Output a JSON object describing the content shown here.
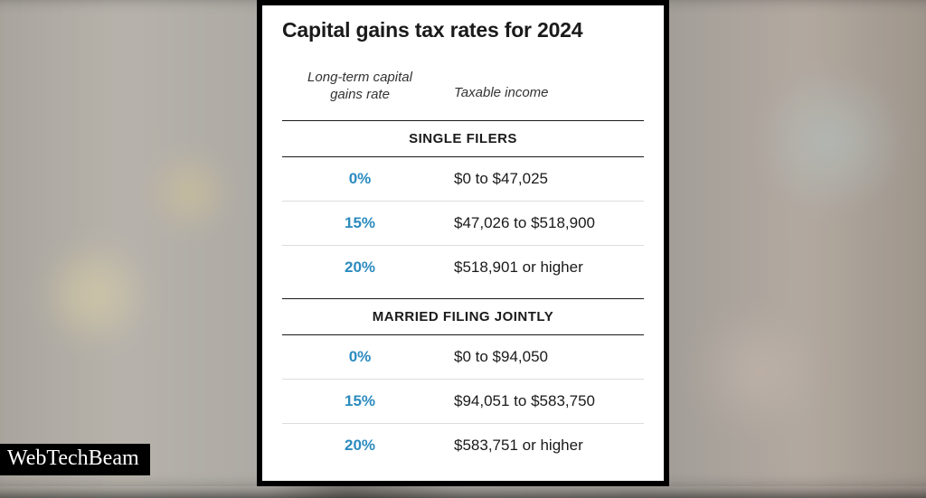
{
  "title": "Capital gains tax rates for 2024",
  "columns": {
    "rate_label_l1": "Long-term capital",
    "rate_label_l2": "gains rate",
    "income_label": "Taxable income"
  },
  "colors": {
    "rate_text": "#2b8bbf",
    "title_text": "#1a1a1a",
    "border": "#1a1a1a",
    "row_divider": "#dddddd",
    "card_bg": "#ffffff",
    "watermark_bg": "#000000",
    "watermark_text": "#ffffff"
  },
  "sections": [
    {
      "header": "SINGLE FILERS",
      "rows": [
        {
          "rate": "0%",
          "income": "$0 to $47,025"
        },
        {
          "rate": "15%",
          "income": "$47,026 to $518,900"
        },
        {
          "rate": "20%",
          "income": "$518,901 or higher"
        }
      ]
    },
    {
      "header": "MARRIED FILING JOINTLY",
      "rows": [
        {
          "rate": "0%",
          "income": "$0 to $94,050"
        },
        {
          "rate": "15%",
          "income": "$94,051 to $583,750"
        },
        {
          "rate": "20%",
          "income": "$583,751 or higher"
        }
      ]
    }
  ],
  "watermark": "WebTechBeam"
}
